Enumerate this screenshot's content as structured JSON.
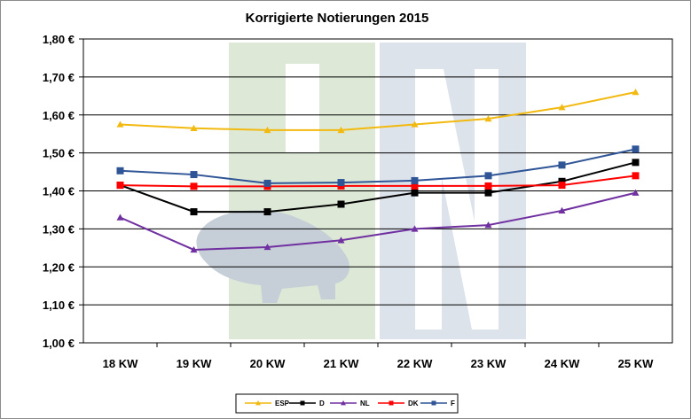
{
  "chart_data": {
    "type": "line",
    "title": "Korrigierte Notierungen 2015",
    "xlabel": "",
    "ylabel": "",
    "categories": [
      "18 KW",
      "19 KW",
      "20 KW",
      "21 KW",
      "22 KW",
      "23 KW",
      "24 KW",
      "25 KW"
    ],
    "ylim": [
      1.0,
      1.8
    ],
    "yticks": [
      "1,00 €",
      "1,10 €",
      "1,20 €",
      "1,30 €",
      "1,40 €",
      "1,50 €",
      "1,60 €",
      "1,70 €",
      "1,80 €"
    ],
    "grid": "horizontal",
    "legend": "bottom",
    "series": [
      {
        "name": "ESP",
        "color": "#f2b90f",
        "marker": "triangle",
        "values": [
          1.575,
          1.565,
          1.56,
          1.56,
          1.575,
          1.59,
          1.62,
          1.66
        ]
      },
      {
        "name": "D",
        "color": "#000000",
        "marker": "square",
        "values": [
          1.415,
          1.345,
          1.345,
          1.365,
          1.395,
          1.395,
          1.425,
          1.475
        ]
      },
      {
        "name": "NL",
        "color": "#7030a0",
        "marker": "triangle",
        "values": [
          1.33,
          1.245,
          1.252,
          1.27,
          1.3,
          1.31,
          1.348,
          1.395
        ]
      },
      {
        "name": "DK",
        "color": "#ff0000",
        "marker": "square",
        "values": [
          1.415,
          1.412,
          1.412,
          1.413,
          1.413,
          1.413,
          1.415,
          1.44
        ]
      },
      {
        "name": "F",
        "color": "#2f5597",
        "marker": "square",
        "values": [
          1.453,
          1.443,
          1.42,
          1.422,
          1.427,
          1.44,
          1.468,
          1.51
        ]
      }
    ]
  }
}
